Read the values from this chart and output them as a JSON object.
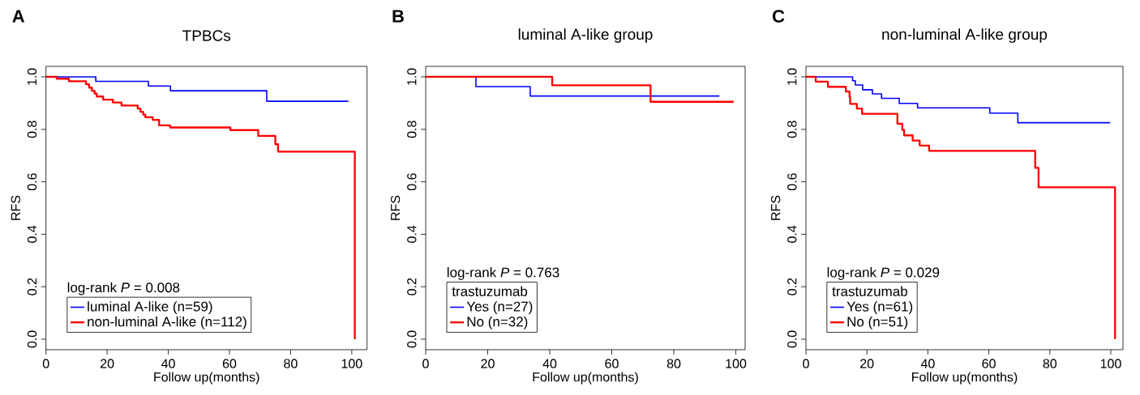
{
  "chart_data": [
    {
      "type": "step",
      "title": "TPBCs",
      "xlabel": "Follow up(months)",
      "ylabel": "RFS",
      "legend": "bottom left",
      "annotations": [
        "**A**",
        "log-rank *P* = 0.008"
      ],
      "xlim": [
        0,
        105
      ],
      "ylim": [
        -0.04,
        1.04
      ],
      "xticks": [
        0,
        20,
        40,
        60,
        80,
        100
      ],
      "yticks": [
        {
          "value": 0,
          "label": "0.0"
        },
        {
          "value": 0.2,
          "label": "0.2"
        },
        {
          "value": 0.4,
          "label": "0.4"
        },
        {
          "value": 0.6,
          "label": "0.6"
        },
        {
          "value": 0.8,
          "label": "0.8"
        },
        {
          "value": 1,
          "label": "1.0"
        }
      ],
      "series": [
        {
          "name": "luminal A-like (n=59)",
          "color": "#0000ff",
          "x": [
            0,
            16.3,
            33.5,
            40.7,
            72.2,
            98.9
          ],
          "values": [
            1.0,
            0.983,
            0.965,
            0.947,
            0.907,
            0.907
          ]
        },
        {
          "name": "non-luminal A-like (n=112)",
          "color": "#ff0000",
          "x": [
            0,
            3.5,
            7.5,
            13.1,
            14.1,
            15.0,
            15.9,
            16.6,
            18.7,
            21.9,
            24.7,
            30.0,
            30.9,
            31.8,
            32.5,
            34.9,
            37.0,
            40.6,
            60.3,
            69.4,
            75.0,
            75.9,
            101
          ],
          "values": [
            1.0,
            0.993,
            0.983,
            0.972,
            0.959,
            0.947,
            0.936,
            0.925,
            0.913,
            0.902,
            0.891,
            0.879,
            0.867,
            0.856,
            0.846,
            0.836,
            0.815,
            0.807,
            0.797,
            0.775,
            0.743,
            0.715,
            0.0
          ]
        }
      ]
    },
    {
      "type": "step",
      "title": "luminal A-like group",
      "xlabel": "Follow up(months)",
      "ylabel": "RFS",
      "legend": "bottom left",
      "legend_title": "trastuzumab",
      "annotations": [
        "**B**",
        "log-rank *P* = 0.763"
      ],
      "xlim": [
        0,
        103
      ],
      "ylim": [
        -0.04,
        1.04
      ],
      "xticks": [
        0,
        20,
        40,
        60,
        80,
        100
      ],
      "yticks": [
        {
          "value": 0,
          "label": "0.0"
        },
        {
          "value": 0.2,
          "label": "0.2"
        },
        {
          "value": 0.4,
          "label": "0.4"
        },
        {
          "value": 0.6,
          "label": "0.6"
        },
        {
          "value": 0.8,
          "label": "0.8"
        },
        {
          "value": 1,
          "label": "1.0"
        }
      ],
      "series": [
        {
          "name": "Yes (n=27)",
          "color": "#0000ff",
          "x": [
            0,
            16.2,
            33.7,
            94.7
          ],
          "values": [
            1.0,
            0.963,
            0.927,
            0.927
          ]
        },
        {
          "name": "No (n=32)",
          "color": "#ff0000",
          "x": [
            0,
            40.8,
            72.5,
            99.3
          ],
          "values": [
            1.0,
            0.968,
            0.905,
            0.905
          ]
        }
      ]
    },
    {
      "type": "step",
      "title": "non-luminal A-like group",
      "xlabel": "Follow up(months)",
      "ylabel": "RFS",
      "legend": "bottom left",
      "legend_title": "trastuzumab",
      "annotations": [
        "**C**",
        "log-rank *P* = 0.029"
      ],
      "xlim": [
        0,
        104
      ],
      "ylim": [
        -0.04,
        1.04
      ],
      "xticks": [
        0,
        20,
        40,
        60,
        80,
        100
      ],
      "yticks": [
        {
          "value": 0,
          "label": "0.0"
        },
        {
          "value": 0.2,
          "label": "0.2"
        },
        {
          "value": 0.4,
          "label": "0.4"
        },
        {
          "value": 0.6,
          "label": "0.6"
        },
        {
          "value": 0.8,
          "label": "0.8"
        },
        {
          "value": 1,
          "label": "1.0"
        }
      ],
      "series": [
        {
          "name": "Yes (n=61)",
          "color": "#0000ff",
          "x": [
            0,
            15.3,
            16.2,
            18.6,
            21.8,
            24.8,
            30.6,
            36.6,
            60.3,
            69.5,
            99.8
          ],
          "values": [
            1.0,
            0.985,
            0.969,
            0.951,
            0.935,
            0.918,
            0.899,
            0.882,
            0.862,
            0.825,
            0.825
          ]
        },
        {
          "name": "No (n=51)",
          "color": "#ff0000",
          "x": [
            0,
            3.2,
            7.2,
            13.1,
            14.3,
            14.5,
            16.7,
            18.4,
            30.0,
            31.6,
            32.2,
            35.0,
            37.3,
            40.4,
            75.2,
            76.3,
            101.4
          ],
          "values": [
            1.0,
            0.982,
            0.962,
            0.944,
            0.923,
            0.897,
            0.879,
            0.859,
            0.821,
            0.798,
            0.777,
            0.757,
            0.738,
            0.718,
            0.653,
            0.579,
            0.0
          ]
        }
      ]
    }
  ]
}
